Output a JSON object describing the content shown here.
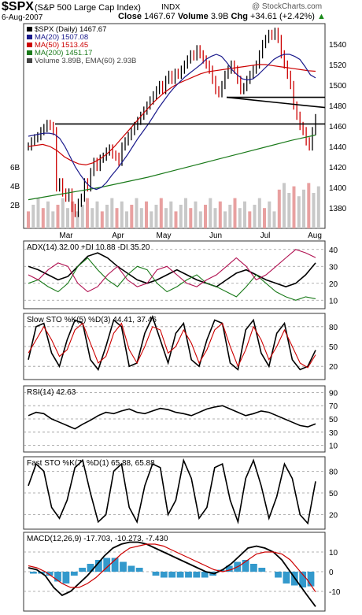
{
  "header": {
    "symbol": "$SPX",
    "name": "(S&P 500 Large Cap Index)",
    "exchange": "INDX",
    "date": "6-Aug-2007",
    "close_label": "Close",
    "close": "1467.67",
    "volume_label": "Volume",
    "volume": "3.9B",
    "chg_label": "Chg",
    "chg": "+34.61 (+2.42%)",
    "arrow": "▲",
    "watermark": "@ StockCharts.com"
  },
  "colors": {
    "price_bar": "#000000",
    "ma20": "#1a1a8c",
    "ma50": "#cc0000",
    "ma200": "#1a7a1a",
    "volume_up": "#c8c8c8",
    "volume_down": "#e8a0a0",
    "pdi": "#1a7a1a",
    "mdi": "#b01050",
    "macd_hist": "#3399cc"
  },
  "chart_data": [
    {
      "type": "ohlc",
      "title": "$SPX (Daily) 1467.67",
      "legend": [
        "$SPX (Daily) 1467.67",
        "MA(20) 1507.08",
        "MA(50) 1513.45",
        "MA(200) 1451.17",
        "Volume 3.89B, EMA(60) 2.93B"
      ],
      "x_labels": [
        "Mar",
        "Apr",
        "May",
        "Jun",
        "Jul",
        "Aug"
      ],
      "y_ticks": [
        1380,
        1400,
        1420,
        1440,
        1460,
        1480,
        1500,
        1520,
        1540
      ],
      "volume_ticks": [
        "2B",
        "4B",
        "6B"
      ],
      "ylim": [
        1360,
        1560
      ],
      "close_series": [
        1440,
        1445,
        1448,
        1450,
        1455,
        1458,
        1462,
        1460,
        1455,
        1400,
        1405,
        1395,
        1390,
        1395,
        1380,
        1375,
        1385,
        1390,
        1405,
        1400,
        1415,
        1425,
        1420,
        1428,
        1430,
        1435,
        1438,
        1432,
        1430,
        1425,
        1440,
        1445,
        1450,
        1455,
        1460,
        1465,
        1470,
        1475,
        1480,
        1485,
        1490,
        1495,
        1500,
        1495,
        1505,
        1510,
        1505,
        1512,
        1510,
        1515,
        1520,
        1525,
        1530,
        1528,
        1535,
        1530,
        1525,
        1520,
        1515,
        1505,
        1495,
        1492,
        1500,
        1510,
        1515,
        1520,
        1515,
        1505,
        1495,
        1498,
        1505,
        1510,
        1515,
        1520,
        1530,
        1540,
        1545,
        1550,
        1548,
        1552,
        1545,
        1530,
        1520,
        1510,
        1500,
        1480,
        1470,
        1460,
        1455,
        1445,
        1440,
        1455,
        1467.67
      ],
      "ma20": [
        1450,
        1451,
        1452,
        1453,
        1453,
        1452,
        1448,
        1440,
        1430,
        1420,
        1412,
        1405,
        1400,
        1398,
        1400,
        1405,
        1412,
        1418,
        1425,
        1432,
        1440,
        1448,
        1455,
        1462,
        1470,
        1478,
        1485,
        1492,
        1498,
        1503,
        1508,
        1512,
        1516,
        1520,
        1525,
        1528,
        1530,
        1528,
        1522,
        1515,
        1510,
        1506,
        1505,
        1506,
        1510,
        1515,
        1520,
        1525,
        1528,
        1530,
        1530,
        1528,
        1525,
        1518,
        1510,
        1507
      ],
      "ma50": [
        1440,
        1441,
        1442,
        1440,
        1436,
        1430,
        1426,
        1423,
        1422,
        1424,
        1428,
        1433,
        1440,
        1448,
        1456,
        1464,
        1472,
        1480,
        1487,
        1493,
        1498,
        1502,
        1505,
        1508,
        1511,
        1513,
        1514,
        1515,
        1516,
        1517,
        1518,
        1519,
        1520,
        1520,
        1519,
        1518,
        1517,
        1516,
        1515,
        1514,
        1513.45
      ],
      "ma200": [
        1388,
        1392,
        1396,
        1400,
        1405,
        1410,
        1416,
        1422,
        1428,
        1434,
        1440,
        1446,
        1451.17
      ],
      "horizontal_lines": [
        1462,
        1488,
        1478
      ]
    },
    {
      "type": "line",
      "title": "ADX(14) 32.00 +DI 10.88 -DI 35.20",
      "series": [
        {
          "name": "ADX(14) 32.00",
          "values": [
            30,
            28,
            25,
            22,
            24,
            30,
            36,
            38,
            35,
            30,
            26,
            22,
            20,
            22,
            25,
            28,
            25,
            22,
            20,
            18,
            22,
            26,
            28,
            25,
            22,
            20,
            18,
            20,
            25,
            32
          ]
        },
        {
          "name": "+DI 10.88",
          "values": [
            20,
            22,
            18,
            15,
            20,
            30,
            35,
            28,
            22,
            18,
            25,
            30,
            28,
            20,
            15,
            18,
            22,
            25,
            20,
            18,
            15,
            12,
            18,
            25,
            20,
            15,
            12,
            10,
            12,
            10.88
          ]
        },
        {
          "name": "-DI 35.20",
          "values": [
            25,
            22,
            28,
            32,
            30,
            20,
            15,
            18,
            25,
            30,
            22,
            18,
            20,
            28,
            30,
            25,
            20,
            18,
            22,
            25,
            30,
            35,
            30,
            22,
            25,
            30,
            35,
            40,
            38,
            35.2
          ]
        }
      ],
      "y_ticks": [
        10,
        20,
        30,
        40
      ],
      "ylim": [
        5,
        45
      ]
    },
    {
      "type": "line",
      "title": "Slow STO %K(5) %D(3) 44.41, 37.46",
      "series": [
        {
          "name": "%K(5) 44.41",
          "values": [
            30,
            80,
            85,
            40,
            20,
            60,
            90,
            85,
            30,
            15,
            50,
            90,
            80,
            20,
            25,
            70,
            95,
            60,
            25,
            70,
            85,
            30,
            20,
            60,
            90,
            85,
            25,
            15,
            75,
            90,
            40,
            20,
            70,
            85,
            30,
            15,
            20,
            44.41
          ]
        },
        {
          "name": "%D(3) 37.46",
          "values": [
            40,
            60,
            80,
            60,
            35,
            45,
            75,
            85,
            55,
            25,
            35,
            70,
            85,
            45,
            25,
            50,
            80,
            75,
            40,
            50,
            75,
            55,
            25,
            45,
            75,
            85,
            50,
            20,
            45,
            80,
            60,
            30,
            50,
            75,
            50,
            25,
            18,
            37.46
          ]
        }
      ],
      "y_ticks": [
        20,
        50,
        80
      ],
      "ylim": [
        0,
        100
      ]
    },
    {
      "type": "line",
      "title": "RSI(14) 42.63",
      "series": [
        {
          "name": "RSI(14) 42.63",
          "values": [
            55,
            60,
            58,
            50,
            45,
            40,
            35,
            42,
            48,
            55,
            60,
            58,
            62,
            65,
            60,
            58,
            62,
            66,
            64,
            60,
            58,
            55,
            60,
            65,
            68,
            70,
            65,
            60,
            55,
            58,
            62,
            60,
            55,
            50,
            45,
            40,
            38,
            42.63
          ]
        }
      ],
      "y_ticks": [
        10,
        30,
        50,
        70,
        90
      ],
      "ylim": [
        0,
        100
      ]
    },
    {
      "type": "line",
      "title": "Fast STO %K(7) %D(1) 65.88, 65.88",
      "series": [
        {
          "name": "%K(7) 65.88",
          "values": [
            60,
            90,
            80,
            30,
            15,
            40,
            85,
            95,
            50,
            10,
            20,
            80,
            90,
            30,
            10,
            60,
            90,
            85,
            20,
            40,
            95,
            70,
            15,
            30,
            85,
            90,
            40,
            10,
            70,
            95,
            60,
            15,
            45,
            90,
            70,
            20,
            8,
            65.88
          ]
        },
        {
          "name": "%D(1) 65.88",
          "values": [
            60,
            90,
            80,
            30,
            15,
            40,
            85,
            95,
            50,
            10,
            20,
            80,
            90,
            30,
            10,
            60,
            90,
            85,
            20,
            40,
            95,
            70,
            15,
            30,
            85,
            90,
            40,
            10,
            70,
            95,
            60,
            15,
            45,
            90,
            70,
            20,
            8,
            65.88
          ]
        }
      ],
      "y_ticks": [
        20,
        50,
        80
      ],
      "ylim": [
        0,
        100
      ]
    },
    {
      "type": "line",
      "title": "MACD(12,26,9) -17.703, -10.273, -7.430",
      "series": [
        {
          "name": "MACD(12,26,9) -17.703",
          "values": [
            2,
            1,
            -2,
            -8,
            -12,
            -10,
            -6,
            -2,
            3,
            8,
            12,
            14,
            15,
            15,
            14,
            12,
            10,
            8,
            6,
            4,
            2,
            0,
            -1,
            1,
            4,
            8,
            12,
            13,
            12,
            10,
            6,
            0,
            -6,
            -12,
            -17.703
          ]
        },
        {
          "name": "Signal -10.273",
          "values": [
            3,
            2,
            0,
            -3,
            -6,
            -8,
            -8,
            -6,
            -3,
            1,
            5,
            9,
            12,
            13,
            14,
            14,
            13,
            11,
            9,
            7,
            5,
            3,
            1,
            0,
            1,
            3,
            6,
            9,
            10,
            10,
            9,
            6,
            1,
            -4,
            -10.273
          ]
        },
        {
          "name": "Histogram -7.430",
          "values": [
            -1,
            -1,
            -2,
            -5,
            -6,
            -2,
            2,
            4,
            6,
            7,
            7,
            5,
            3,
            2,
            0,
            -2,
            -3,
            -3,
            -3,
            -3,
            -3,
            -3,
            -2,
            1,
            3,
            5,
            6,
            4,
            2,
            0,
            -3,
            -6,
            -7,
            -8,
            -7.43
          ]
        }
      ],
      "y_ticks": [
        -10,
        0,
        10
      ],
      "ylim": [
        -20,
        20
      ]
    }
  ]
}
